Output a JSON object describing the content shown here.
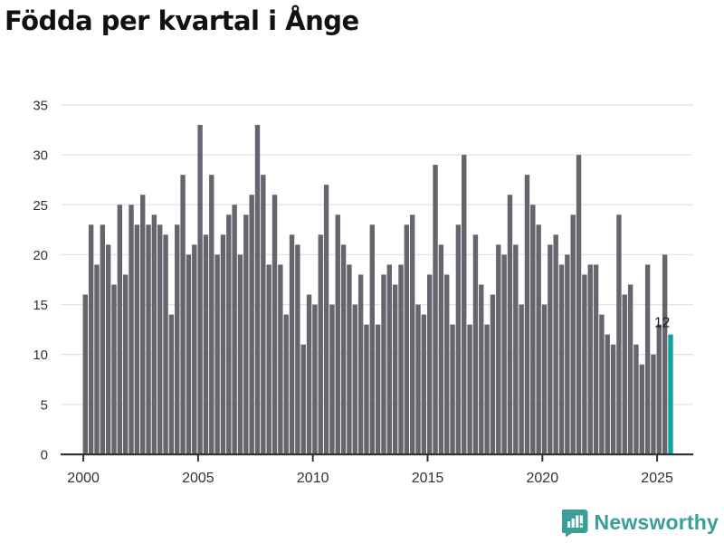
{
  "chart_data": {
    "type": "bar",
    "title": "Födda per kvartal i Ånge",
    "x_axis": {
      "start": "2000-Q1",
      "frequency": "quarterly",
      "tick_labels": [
        "2000",
        "2005",
        "2010",
        "2015",
        "2020",
        "2025"
      ]
    },
    "y_axis": {
      "ticks": [
        0,
        5,
        10,
        15,
        20,
        25,
        30,
        35
      ],
      "range": [
        0,
        35
      ]
    },
    "grid": "horizontal",
    "legend": "none",
    "values": [
      16,
      23,
      19,
      23,
      21,
      17,
      25,
      18,
      25,
      23,
      26,
      23,
      24,
      23,
      22,
      14,
      23,
      28,
      20,
      21,
      33,
      22,
      28,
      20,
      22,
      24,
      25,
      20,
      24,
      26,
      33,
      28,
      19,
      26,
      19,
      14,
      22,
      21,
      11,
      16,
      15,
      22,
      27,
      15,
      24,
      21,
      19,
      15,
      18,
      13,
      23,
      13,
      18,
      19,
      17,
      19,
      23,
      24,
      15,
      14,
      18,
      29,
      21,
      18,
      13,
      23,
      30,
      13,
      22,
      17,
      13,
      16,
      21,
      20,
      26,
      21,
      15,
      28,
      25,
      23,
      15,
      21,
      22,
      19,
      20,
      24,
      30,
      18,
      19,
      19,
      14,
      12,
      11,
      24,
      16,
      17,
      11,
      9,
      19,
      10,
      13,
      20,
      12
    ],
    "highlight": {
      "index": 102,
      "period": "2025-Q3",
      "value": 12,
      "label": "12"
    }
  },
  "footer": {
    "brand": "Newsworthy",
    "logo_icon": "newsworthy-speech-bubble-chart-icon"
  },
  "colors": {
    "bar": "#65656e",
    "highlight": "#10a39e",
    "axis": "#333333",
    "grid": "#e3e3e3",
    "text": "#1a1a1a",
    "tick_text": "#333333",
    "brand": "#3a9f99"
  }
}
